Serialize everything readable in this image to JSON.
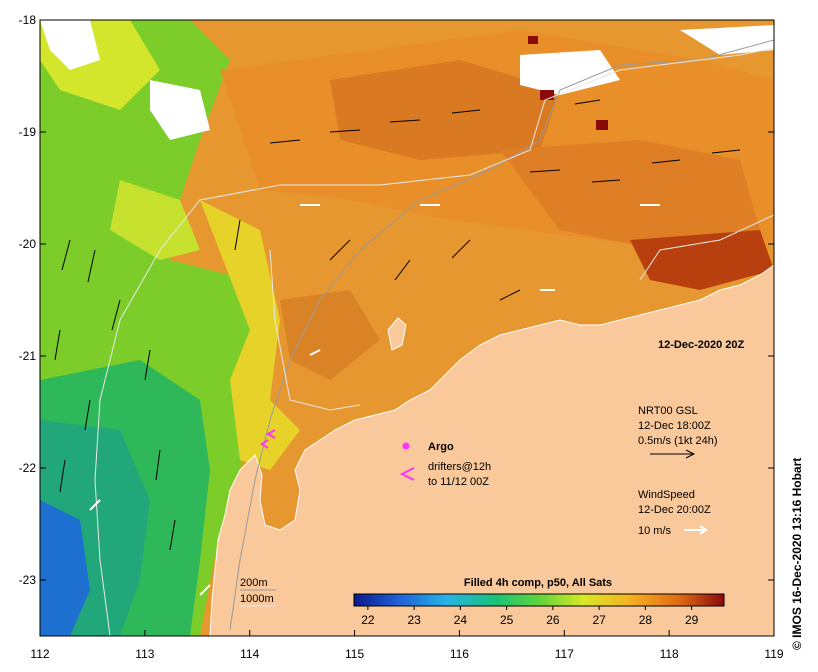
{
  "map": {
    "lon_ticks": [
      "112",
      "113",
      "114",
      "115",
      "116",
      "117",
      "118",
      "119"
    ],
    "lat_ticks": [
      "-18",
      "-19",
      "-20",
      "-21",
      "-22",
      "-23"
    ],
    "lon_range": [
      112,
      119
    ],
    "lat_range": [
      -23.5,
      -18
    ],
    "colors": {
      "land": "#f9c89b",
      "coast_line": "#ffffff",
      "isobath": "#cfcfcf",
      "vector_current": "#000000",
      "vector_wind": "#ffffff",
      "marker": "#ff33ff"
    },
    "timestamp": "12-Dec-2020 20Z",
    "legend": {
      "argo_label": "Argo",
      "drifter_label_1": "drifters@12h",
      "drifter_label_2": "to 11/12 00Z"
    },
    "current_info": {
      "line1": "NRT00 GSL",
      "line2": "12-Dec 18:00Z",
      "line3": "0.5m/s (1kt 24h)"
    },
    "wind_info": {
      "line1": "WindSpeed",
      "line2": "12-Dec 20:00Z",
      "line3": "10 m/s"
    },
    "isobaths": {
      "label_200": "200m",
      "label_1000": "1000m"
    },
    "colorbar": {
      "title": "Filled 4h comp, p50, All Sats",
      "ticks": [
        "22",
        "23",
        "24",
        "25",
        "26",
        "27",
        "28",
        "29"
      ],
      "range": [
        21.7,
        29.7
      ]
    },
    "credit": "© IMOS 16-Dec-2020 13:16 Hobart"
  }
}
